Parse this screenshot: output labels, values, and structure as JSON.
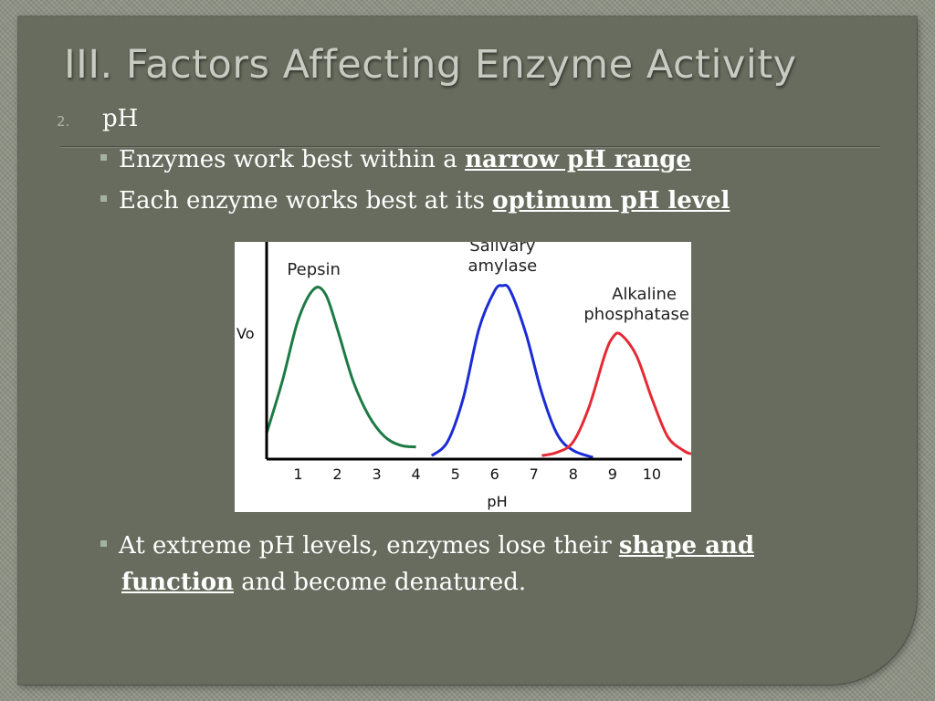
{
  "slide": {
    "title": "III. Factors Affecting Enzyme Activity",
    "item_number": "2.",
    "item_heading": "pH",
    "bullets": [
      {
        "before": "Enzymes work best within a ",
        "emphasis": "narrow pH range",
        "after": ""
      },
      {
        "before": "Each enzyme works best at its ",
        "emphasis": "optimum pH level",
        "after": ""
      },
      {
        "before": "At extreme pH levels, enzymes lose their ",
        "emphasis": "shape and",
        "emphasis2": "function",
        "after": " and become denatured."
      }
    ]
  },
  "chart_data": {
    "type": "line",
    "xlabel": "pH",
    "ylabel": "Vo",
    "xlim": [
      0.2,
      11.0
    ],
    "ylim": [
      0,
      1.0
    ],
    "x_ticks": [
      1,
      2,
      3,
      4,
      5,
      6,
      7,
      8,
      9,
      10
    ],
    "grid": false,
    "series": [
      {
        "name": "Pepsin",
        "color": "#1d7a44",
        "x": [
          0.2,
          0.6,
          1.0,
          1.4,
          1.7,
          2.0,
          2.4,
          2.8,
          3.2,
          3.6,
          4.0
        ],
        "y": [
          0.15,
          0.45,
          0.8,
          0.98,
          0.95,
          0.75,
          0.45,
          0.25,
          0.13,
          0.08,
          0.07
        ]
      },
      {
        "name": "Salivary\namylase",
        "color": "#1b2bd6",
        "x": [
          4.4,
          4.8,
          5.2,
          5.6,
          6.0,
          6.2,
          6.4,
          6.8,
          7.2,
          7.6,
          8.0,
          8.5
        ],
        "y": [
          0.02,
          0.1,
          0.35,
          0.75,
          0.97,
          1.0,
          0.97,
          0.72,
          0.38,
          0.14,
          0.05,
          0.01
        ]
      },
      {
        "name": "Alkaline\nphosphatase",
        "color": "#e62a35",
        "x": [
          7.2,
          7.6,
          8.0,
          8.4,
          8.8,
          9.0,
          9.2,
          9.6,
          10.0,
          10.4,
          10.8,
          11.0
        ],
        "y": [
          0.02,
          0.04,
          0.1,
          0.3,
          0.6,
          0.7,
          0.72,
          0.6,
          0.35,
          0.13,
          0.05,
          0.03
        ]
      }
    ]
  }
}
